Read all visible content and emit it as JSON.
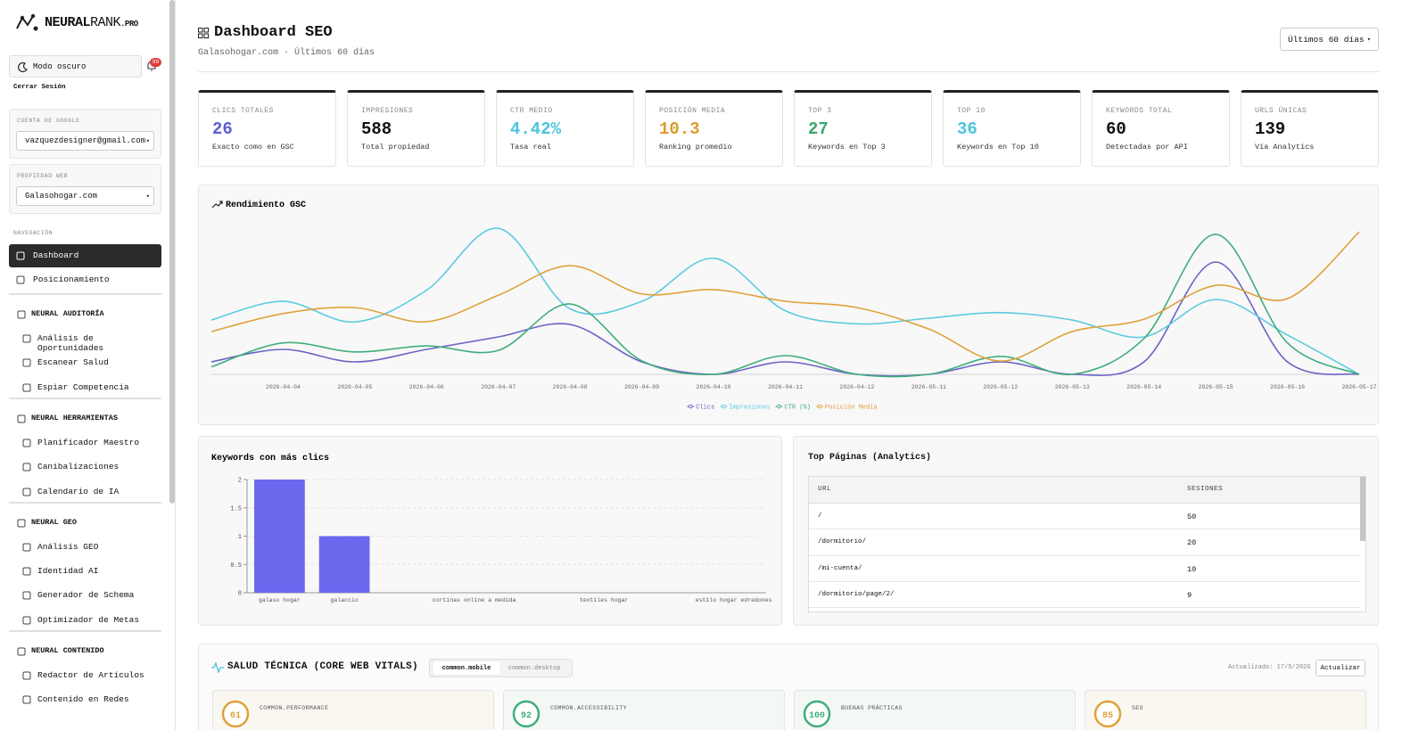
{
  "sidebar": {
    "brand": {
      "name": "NEURAL",
      "accent": "RANK",
      "suffix": ".PRO"
    },
    "dark_mode": "Modo oscuro",
    "notifications": "90",
    "logout": "Cerrar Sesión",
    "google_account": {
      "label": "CUENTA DE GOOGLE",
      "value": "vazquezdesigner@gmail.com"
    },
    "property": {
      "label": "PROPIEDAD WEB",
      "value": "Galasohogar.com"
    },
    "nav_label": "NAVEGACIÓN",
    "nav": [
      {
        "label": "Dashboard",
        "active": true
      },
      {
        "label": "Posicionamiento"
      }
    ],
    "groups": [
      {
        "title": "NEURAL AUDITORÍA",
        "items": [
          "Análisis de Oportunidades",
          "Escanear Salud",
          "Espiar Competencia"
        ]
      },
      {
        "title": "NEURAL HERRAMIENTAS",
        "items": [
          "Planificador Maestro",
          "Canibalizaciones",
          "Calendario de IA"
        ]
      },
      {
        "title": "NEURAL GEO",
        "items": [
          "Análisis GEO",
          "Identidad AI",
          "Generador de Schema",
          "Optimizador de Metas"
        ]
      },
      {
        "title": "NEURAL CONTENIDO",
        "items": [
          "Redactor de Artículos",
          "Contenido en Redes"
        ]
      }
    ]
  },
  "header": {
    "title": "Dashboard SEO",
    "subtitle": "Galasohogar.com · Últimos 60 días",
    "range": "Últimos 60 días"
  },
  "kpis": [
    {
      "label": "CLICS TOTALES",
      "value": "26",
      "note": "Exacto como en GSC",
      "color": "#5b5fd0"
    },
    {
      "label": "IMPRESIONES",
      "value": "588",
      "note": "Total propiedad",
      "color": "#111111"
    },
    {
      "label": "CTR MEDIO",
      "value": "4.42%",
      "note": "Tasa real",
      "color": "#4cc3dc"
    },
    {
      "label": "POSICIÓN MEDIA",
      "value": "10.3",
      "note": "Ranking promedio",
      "color": "#dc9a2c"
    },
    {
      "label": "TOP 3",
      "value": "27",
      "note": "Keywords en Top 3",
      "color": "#38a56f"
    },
    {
      "label": "TOP 10",
      "value": "36",
      "note": "Keywords en Top 10",
      "color": "#4cc3dc"
    },
    {
      "label": "KEYWORDS TOTAL",
      "value": "60",
      "note": "Detectadas por API",
      "color": "#111111"
    },
    {
      "label": "URLS ÚNICAS",
      "value": "139",
      "note": "Vía Analytics",
      "color": "#111111"
    }
  ],
  "chart_data": [
    {
      "type": "line",
      "title": "Rendimiento GSC",
      "categories": [
        null,
        "2026-04-04",
        "2026-04-05",
        "2026-04-06",
        "2026-04-07",
        "2026-04-08",
        "2026-04-09",
        "2026-04-10",
        "2026-04-11",
        "2026-04-12",
        "2026-05-11",
        "2026-05-12",
        "2026-05-13",
        "2026-05-14",
        "2026-05-15",
        "2026-05-16",
        "2026-05-17"
      ],
      "series": [
        {
          "name": "Clics",
          "color": "#6a64c4",
          "ylim": [
            0,
            12
          ],
          "values": [
            1,
            2,
            1,
            2,
            3,
            4,
            1,
            0,
            1,
            0,
            0,
            1,
            0,
            1,
            9,
            1,
            0
          ]
        },
        {
          "name": "Impresiones",
          "color": "#5ccbe0",
          "ylim": [
            0,
            80
          ],
          "values": [
            29,
            39,
            28,
            45,
            78,
            35,
            39,
            62,
            34,
            27,
            30,
            33,
            29,
            20,
            40,
            21,
            0
          ]
        },
        {
          "name": "CTR (%)",
          "color": "#3fae7c",
          "ylim": [
            0,
            20
          ],
          "values": [
            1,
            4.2,
            3,
            3.8,
            3.2,
            9.4,
            1.8,
            0,
            2.5,
            0,
            0,
            2.4,
            0,
            4.8,
            18.7,
            4.2,
            0
          ]
        },
        {
          "name": "Posición Media",
          "color": "#e0a13a",
          "ylim": [
            0,
            35
          ],
          "values": [
            10,
            14.2,
            15.6,
            12.3,
            18.5,
            25.4,
            18.8,
            19.8,
            17.1,
            15.6,
            10.6,
            3.1,
            10,
            12.9,
            20.8,
            17.7,
            33.3
          ]
        }
      ],
      "legend": "bottom"
    },
    {
      "type": "bar",
      "title": "Keywords con más clics",
      "categories": [
        "galaso hogar",
        "galaccio",
        null,
        "cortinas online a medida",
        null,
        "textiles hogar",
        null,
        "estilo hogar edredones"
      ],
      "values": [
        2,
        1,
        0,
        0,
        0,
        0,
        0,
        0
      ],
      "color": "#6b68ee",
      "ylim": [
        0,
        2
      ],
      "yticks": [
        0,
        0.5,
        1,
        1.5,
        2
      ],
      "grid": true
    }
  ],
  "top_pages": {
    "title": "Top Páginas (Analytics)",
    "columns": [
      "URL",
      "SESIONES"
    ],
    "rows": [
      [
        "/",
        50
      ],
      [
        "/dormitorio/",
        20
      ],
      [
        "/mi-cuenta/",
        10
      ],
      [
        "/dormitorio/page/2/",
        9
      ]
    ]
  },
  "web_vitals": {
    "title": "SALUD TÉCNICA (CORE WEB VITALS)",
    "tabs": [
      {
        "label": "common.mobile",
        "active": true
      },
      {
        "label": "common.desktop"
      }
    ],
    "updated": "Actualizado: 17/5/2026",
    "button": "Actualizar",
    "scores": [
      {
        "label": "COMMON.PERFORMANCE",
        "value": 61,
        "color": "#e0a13a",
        "bg": "#faf7f1"
      },
      {
        "label": "COMMON.ACCESSIBILITY",
        "value": 92,
        "color": "#3fae7c",
        "bg": "#f3f8f5"
      },
      {
        "label": "BUENAS PRÁCTICAS",
        "value": 100,
        "color": "#3fae7c",
        "bg": "#f3f8f5"
      },
      {
        "label": "SEO",
        "value": 85,
        "color": "#e0a13a",
        "bg": "#faf7f1"
      }
    ]
  }
}
